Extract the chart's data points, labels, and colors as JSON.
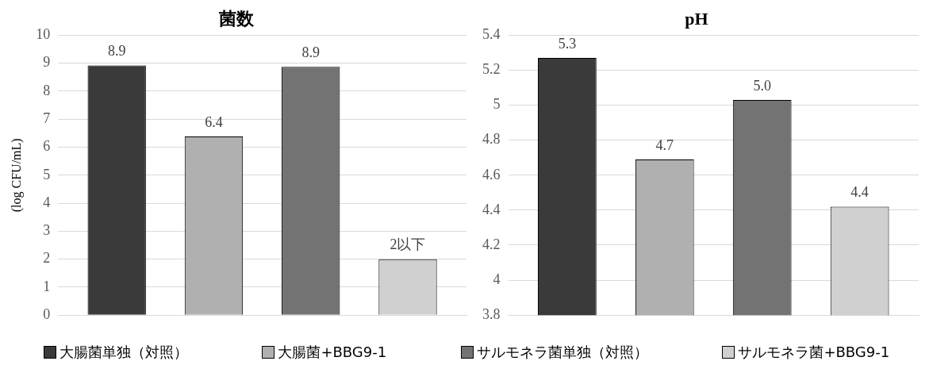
{
  "chart_data": [
    {
      "type": "bar",
      "title": "菌数",
      "ylabel": "(log CFU/mL)",
      "categories": [
        null
      ],
      "ylim": [
        0,
        10
      ],
      "yticks": [
        0,
        1,
        2,
        3,
        4,
        5,
        6,
        7,
        8,
        9,
        10
      ],
      "grid": "y",
      "legend": "bottom",
      "series": [
        {
          "name": "大腸菌単独（対照）",
          "color": "#3a3a3a",
          "values": [
            8.92
          ],
          "value_labels": [
            "8.9"
          ]
        },
        {
          "name": "大腸菌+BBG9-1",
          "color": "#b0b0b0",
          "values": [
            6.38
          ],
          "value_labels": [
            "6.4"
          ]
        },
        {
          "name": "サルモネラ菌単独（対照）",
          "color": "#737373",
          "values": [
            8.87
          ],
          "value_labels": [
            "8.9"
          ]
        },
        {
          "name": "サルモネラ菌+BBG9-1",
          "color": "#d0d0d0",
          "values": [
            2.0
          ],
          "value_labels": [
            "2以下"
          ]
        }
      ]
    },
    {
      "type": "bar",
      "title": "pH",
      "categories": [
        null
      ],
      "ylim": [
        3.8,
        5.4
      ],
      "yticks": [
        3.8,
        4,
        4.2,
        4.4,
        4.6,
        4.8,
        5,
        5.2,
        5.4
      ],
      "grid": "y",
      "series": [
        {
          "color": "#3a3a3a",
          "values": [
            5.27
          ],
          "value_labels": [
            "5.3"
          ]
        },
        {
          "color": "#b0b0b0",
          "values": [
            4.69
          ],
          "value_labels": [
            "4.7"
          ]
        },
        {
          "color": "#737373",
          "values": [
            5.03
          ],
          "value_labels": [
            "5.0"
          ]
        },
        {
          "color": "#d0d0d0",
          "values": [
            4.42
          ],
          "value_labels": [
            "4.4"
          ]
        }
      ]
    }
  ]
}
